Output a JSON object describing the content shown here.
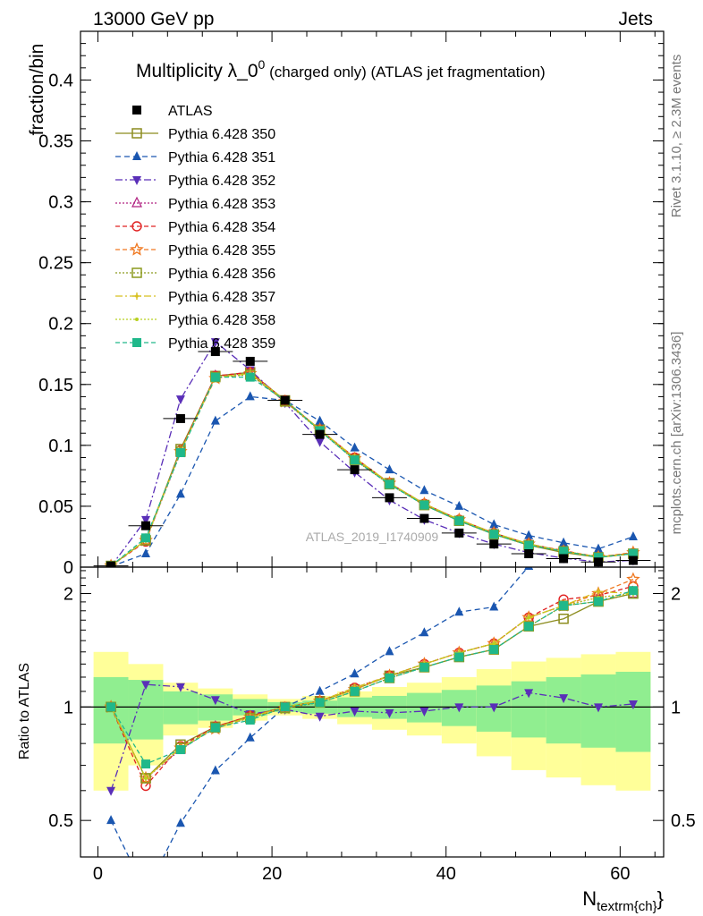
{
  "header": {
    "left": "13000 GeV pp",
    "right": "Jets"
  },
  "side_labels": {
    "rivet": "Rivet 3.1.10, ≥ 2.3M events",
    "mcplots": "mcplots.cern.ch [arXiv:1306.3436]"
  },
  "chart_data": {
    "type": "line",
    "title_main": "Multiplicity λ_0",
    "title_sup": "0",
    "title_rest": " (charged only) (ATLAS jet fragmentation)",
    "watermark": "ATLAS_2019_I1740909",
    "ylabel": "fraction/bin",
    "ratio_ylabel": "Ratio to ATLAS",
    "xlabel_main": "N",
    "xlabel_sub": "textrm{ch}",
    "xlabel_close": "}",
    "xlim": [
      -2,
      65
    ],
    "ylim": [
      0,
      0.44
    ],
    "ratio_ylim": [
      0.4,
      2.35
    ],
    "x_ticks": [
      "0",
      "20",
      "40",
      "60"
    ],
    "x_tick_values": [
      0,
      20,
      40,
      60
    ],
    "y_ticks": [
      "0",
      "0.05",
      "0.1",
      "0.15",
      "0.2",
      "0.25",
      "0.3",
      "0.35",
      "0.4"
    ],
    "y_tick_values": [
      0,
      0.05,
      0.1,
      0.15,
      0.2,
      0.25,
      0.3,
      0.35,
      0.4
    ],
    "ratio_ticks": [
      "0.5",
      "1",
      "2"
    ],
    "ratio_tick_values": [
      0.5,
      1,
      2
    ],
    "x": [
      1.5,
      5.5,
      9.5,
      13.5,
      17.5,
      21.5,
      25.5,
      29.5,
      33.5,
      37.5,
      41.5,
      45.5,
      49.5,
      53.5,
      57.5,
      61.5
    ],
    "data": {
      "name": "ATLAS",
      "values": [
        0.001,
        0.034,
        0.122,
        0.177,
        0.169,
        0.137,
        0.109,
        0.08,
        0.057,
        0.04,
        0.028,
        0.019,
        0.011,
        0.007,
        0.0042,
        0.0055
      ],
      "band_inner": [
        0.2,
        0.18,
        0.1,
        0.08,
        0.05,
        0.03,
        0.04,
        0.06,
        0.07,
        0.09,
        0.11,
        0.14,
        0.17,
        0.2,
        0.22,
        0.24
      ],
      "band_outer": [
        0.4,
        0.3,
        0.16,
        0.12,
        0.08,
        0.05,
        0.07,
        0.1,
        0.13,
        0.16,
        0.2,
        0.26,
        0.32,
        0.35,
        0.38,
        0.4
      ]
    },
    "series": [
      {
        "name": "Pythia 6.428 350",
        "color": "#8c8c1e",
        "marker": "square-open",
        "dash": "",
        "values": [
          0.001,
          0.022,
          0.097,
          0.157,
          0.16,
          0.137,
          0.113,
          0.089,
          0.069,
          0.051,
          0.038,
          0.027,
          0.018,
          0.012,
          0.008,
          0.011
        ]
      },
      {
        "name": "Pythia 6.428 351",
        "color": "#1a56b0",
        "marker": "triangle-up",
        "dash": "6,4",
        "values": [
          0.0005,
          0.011,
          0.06,
          0.12,
          0.14,
          0.137,
          0.12,
          0.098,
          0.08,
          0.063,
          0.05,
          0.035,
          0.026,
          0.02,
          0.015,
          0.025
        ]
      },
      {
        "name": "Pythia 6.428 352",
        "color": "#5a2fb8",
        "marker": "triangle-down",
        "dash": "8,3,2,3",
        "values": [
          0.0006,
          0.039,
          0.138,
          0.185,
          0.162,
          0.135,
          0.103,
          0.078,
          0.055,
          0.039,
          0.028,
          0.019,
          0.012,
          0.0074,
          0.0042,
          0.0056
        ]
      },
      {
        "name": "Pythia 6.428 353",
        "color": "#b02080",
        "marker": "triangle-open",
        "dash": "2,2",
        "values": [
          0.001,
          0.022,
          0.094,
          0.157,
          0.159,
          0.136,
          0.113,
          0.089,
          0.069,
          0.052,
          0.039,
          0.028,
          0.019,
          0.013,
          0.0082,
          0.011
        ]
      },
      {
        "name": "Pythia 6.428 354",
        "color": "#e02020",
        "marker": "circle-open",
        "dash": "5,3",
        "values": [
          0.001,
          0.021,
          0.096,
          0.157,
          0.16,
          0.137,
          0.113,
          0.09,
          0.069,
          0.052,
          0.039,
          0.028,
          0.019,
          0.0135,
          0.0083,
          0.0115
        ]
      },
      {
        "name": "Pythia 6.428 355",
        "color": "#f07820",
        "marker": "star-open",
        "dash": "5,3",
        "values": [
          0.001,
          0.022,
          0.095,
          0.155,
          0.159,
          0.136,
          0.113,
          0.089,
          0.069,
          0.052,
          0.039,
          0.028,
          0.019,
          0.013,
          0.0084,
          0.012
        ]
      },
      {
        "name": "Pythia 6.428 356",
        "color": "#8c9a1e",
        "marker": "square-open",
        "dash": "2,2",
        "values": [
          0.001,
          0.022,
          0.095,
          0.156,
          0.158,
          0.136,
          0.112,
          0.088,
          0.068,
          0.051,
          0.038,
          0.027,
          0.018,
          0.013,
          0.008,
          0.011
        ]
      },
      {
        "name": "Pythia 6.428 357",
        "color": "#d8c020",
        "marker": "dot-star",
        "dash": "8,3,2,3",
        "values": [
          0.001,
          0.022,
          0.095,
          0.156,
          0.159,
          0.137,
          0.113,
          0.09,
          0.069,
          0.052,
          0.039,
          0.028,
          0.019,
          0.013,
          0.0085,
          0.011
        ]
      },
      {
        "name": "Pythia 6.428 358",
        "color": "#b8d020",
        "marker": "dot",
        "dash": "2,2",
        "values": [
          0.001,
          0.022,
          0.095,
          0.156,
          0.159,
          0.137,
          0.113,
          0.089,
          0.069,
          0.052,
          0.039,
          0.028,
          0.019,
          0.013,
          0.0082,
          0.011
        ]
      },
      {
        "name": "Pythia 6.428 359",
        "color": "#20b88a",
        "marker": "square",
        "dash": "5,3",
        "values": [
          0.001,
          0.024,
          0.094,
          0.156,
          0.156,
          0.137,
          0.112,
          0.088,
          0.068,
          0.051,
          0.038,
          0.027,
          0.018,
          0.013,
          0.008,
          0.0112
        ]
      }
    ]
  }
}
